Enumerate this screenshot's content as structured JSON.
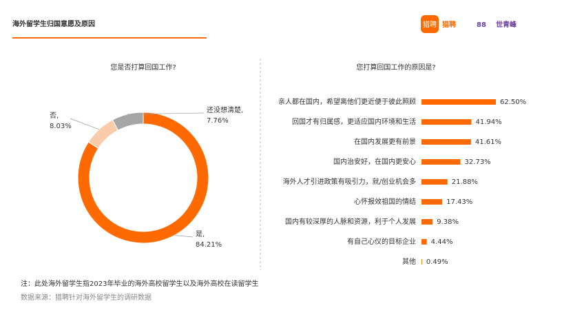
{
  "header": {
    "title": "海外留学生归国意愿及原因",
    "brand_icon": "猎聘",
    "brand": "猎聘",
    "partner_mark": "88",
    "partner": "世青峰"
  },
  "chart_data": [
    {
      "type": "pie",
      "title": "您是否打算回国工作?",
      "donut": true,
      "categories": [
        "是,",
        "否,",
        "还没想清楚,"
      ],
      "values": [
        84.21,
        8.03,
        7.76
      ],
      "value_labels": [
        "84.21%",
        "8.03%",
        "7.76%"
      ],
      "colors": [
        "#ff6a00",
        "#f9cbaa",
        "#a6a6a6"
      ]
    },
    {
      "type": "hbar",
      "title": "您打算回国工作的原因是?",
      "color": "#ff6a00",
      "categories": [
        "亲人都在国内，希望离他们更近便于彼此照顾",
        "回国才有归属感，更适应国内环境和生活",
        "在国内发展更有前景",
        "国内治安好，在国内更安心",
        "海外人才引进政策有吸引力，就/创业机会多",
        "心怀报效祖国的情结",
        "国内有较深厚的人脉和资源，利于个人发展",
        "有自己心仪的目标企业",
        "其他"
      ],
      "values": [
        62.5,
        41.94,
        41.61,
        32.73,
        21.88,
        17.43,
        9.38,
        4.44,
        0.49
      ],
      "value_labels": [
        "62.50%",
        "41.94%",
        "41.61%",
        "32.73%",
        "21.88%",
        "17.43%",
        "9.38%",
        "4.44%",
        "0.49%"
      ]
    }
  ],
  "notes": [
    "注：此处海外留学生指2023年毕业的海外高校留学生以及海外高校在读留学生",
    "数据来源：猎聘针对海外留学生的调研数据"
  ]
}
